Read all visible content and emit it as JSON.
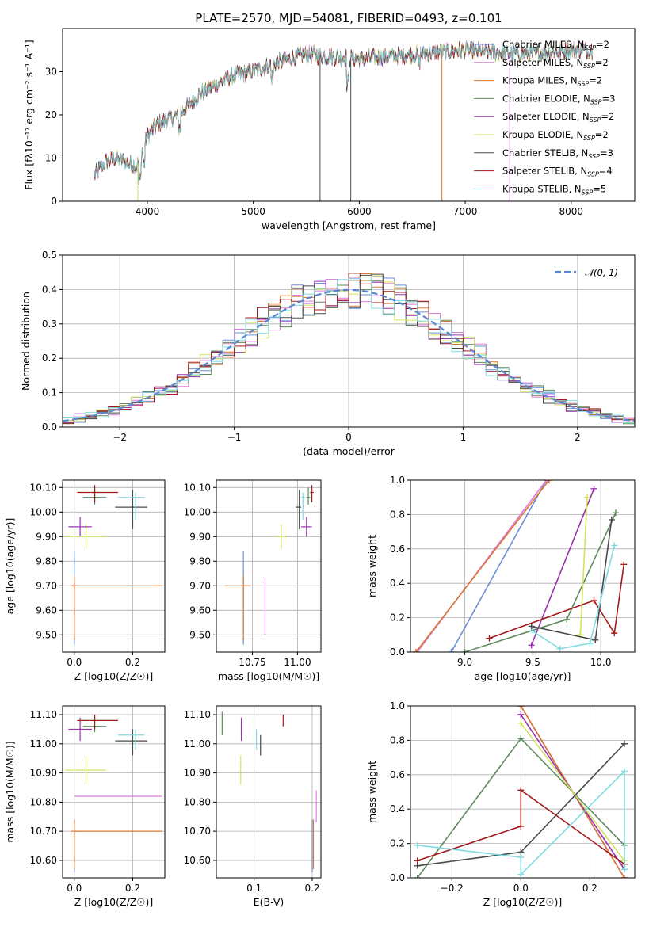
{
  "colors": {
    "Chabrier MILES": "#6a8fd8",
    "Salpeter MILES": "#e07be0",
    "Kroupa MILES": "#d9782e",
    "Chabrier ELODIE": "#5e8a5e",
    "Salpeter ELODIE": "#9a32b0",
    "Kroupa ELODIE": "#d2e35a",
    "Chabrier STELIB": "#4a4a4a",
    "Salpeter STELIB": "#a31a1a",
    "Kroupa STELIB": "#7fdbe0"
  },
  "chart_data": [
    {
      "id": "spectrum",
      "type": "line",
      "title": "PLATE=2570, MJD=54081, FIBERID=0493, z=0.101",
      "xlabel": "wavelength [Angstrom, rest frame]",
      "ylabel": "Flux [fλ10⁻¹⁷ erg cm⁻² s⁻¹ A⁻¹]",
      "xlim": [
        3200,
        8600
      ],
      "ylim": [
        0,
        40
      ],
      "xticks": [
        4000,
        5000,
        6000,
        7000,
        8000
      ],
      "yticks": [
        0,
        10,
        20,
        30
      ],
      "legend_position": "upper-right",
      "legend": [
        {
          "name": "Chabrier MILES",
          "nssp": 2
        },
        {
          "name": "Salpeter MILES",
          "nssp": 2
        },
        {
          "name": "Kroupa MILES",
          "nssp": 2
        },
        {
          "name": "Chabrier ELODIE",
          "nssp": 3
        },
        {
          "name": "Salpeter ELODIE",
          "nssp": 2
        },
        {
          "name": "Kroupa ELODIE",
          "nssp": 2
        },
        {
          "name": "Chabrier STELIB",
          "nssp": 3
        },
        {
          "name": "Salpeter STELIB",
          "nssp": 4
        },
        {
          "name": "Kroupa STELIB",
          "nssp": 5
        }
      ],
      "continuum": [
        [
          3500,
          6
        ],
        [
          3600,
          9
        ],
        [
          3700,
          10
        ],
        [
          3800,
          9
        ],
        [
          3900,
          8
        ],
        [
          4000,
          15
        ],
        [
          4100,
          18
        ],
        [
          4300,
          20
        ],
        [
          4500,
          25
        ],
        [
          4800,
          29
        ],
        [
          5000,
          30
        ],
        [
          5200,
          32
        ],
        [
          5500,
          34
        ],
        [
          6000,
          33
        ],
        [
          6500,
          34
        ],
        [
          7000,
          35
        ],
        [
          7500,
          34
        ],
        [
          8000,
          35
        ],
        [
          8200,
          35
        ]
      ]
    },
    {
      "id": "residuals",
      "type": "histogram",
      "xlabel": "(data-model)/error",
      "ylabel": "Normed distribution",
      "xlim": [
        -2.5,
        2.5
      ],
      "ylim": [
        0,
        0.5
      ],
      "xticks": [
        -2,
        -1,
        0,
        1,
        2
      ],
      "yticks": [
        0.0,
        0.1,
        0.2,
        0.3,
        0.4,
        0.5
      ],
      "legend_position": "upper-right",
      "reference_curve": "𝒩(0, 1)"
    },
    {
      "id": "age-vs-Z",
      "type": "errorbar",
      "xlabel": "Z [log10(Z/Z☉)]",
      "ylabel": "age [log10(age/yr)]",
      "xlim": [
        -0.04,
        0.31
      ],
      "ylim": [
        9.43,
        10.13
      ],
      "xticks": [
        0.0,
        0.2
      ],
      "yticks": [
        9.5,
        9.6,
        9.7,
        9.8,
        9.9,
        10.0,
        10.1
      ],
      "points": [
        {
          "series": "Chabrier MILES",
          "x": 0.0,
          "y": 9.7,
          "xerr": [
            0.0,
            0.01
          ],
          "yerr": [
            0.24,
            0.14
          ]
        },
        {
          "series": "Salpeter MILES",
          "x": 0.0,
          "y": 9.7,
          "xerr": [
            0.01,
            0.02
          ],
          "yerr": [
            0.2,
            0.02
          ]
        },
        {
          "series": "Kroupa MILES",
          "x": 0.0,
          "y": 9.7,
          "xerr": [
            0.01,
            0.3
          ],
          "yerr": [
            0.22,
            0.04
          ]
        },
        {
          "series": "Chabrier ELODIE",
          "x": 0.07,
          "y": 10.06,
          "xerr": [
            0.04,
            0.04
          ],
          "yerr": [
            0.03,
            0.04
          ]
        },
        {
          "series": "Salpeter ELODIE",
          "x": 0.02,
          "y": 9.94,
          "xerr": [
            0.04,
            0.04
          ],
          "yerr": [
            0.04,
            0.04
          ]
        },
        {
          "series": "Kroupa ELODIE",
          "x": 0.04,
          "y": 9.9,
          "xerr": [
            0.07,
            0.07
          ],
          "yerr": [
            0.05,
            0.05
          ]
        },
        {
          "series": "Chabrier STELIB",
          "x": 0.2,
          "y": 10.02,
          "xerr": [
            0.06,
            0.05
          ],
          "yerr": [
            0.09,
            0.07
          ]
        },
        {
          "series": "Salpeter STELIB",
          "x": 0.07,
          "y": 10.08,
          "xerr": [
            0.06,
            0.08
          ],
          "yerr": [
            0.04,
            0.03
          ]
        },
        {
          "series": "Kroupa STELIB",
          "x": 0.21,
          "y": 10.06,
          "xerr": [
            0.06,
            0.03
          ],
          "yerr": [
            0.09,
            0.02
          ]
        }
      ]
    },
    {
      "id": "age-vs-mass",
      "type": "errorbar",
      "xlabel": "mass [log10(M/M☉)]",
      "ylabel": "",
      "xlim": [
        10.55,
        11.13
      ],
      "ylim": [
        9.43,
        10.13
      ],
      "xticks": [
        10.75,
        11.0
      ],
      "yticks": [
        9.5,
        9.6,
        9.7,
        9.8,
        9.9,
        10.0,
        10.1
      ],
      "points": [
        {
          "series": "Chabrier MILES",
          "x": 10.7,
          "y": 9.7,
          "xerr": [
            0.0,
            0.01
          ],
          "yerr": [
            0.24,
            0.14
          ]
        },
        {
          "series": "Salpeter MILES",
          "x": 10.82,
          "y": 9.7,
          "xerr": [
            0.0,
            0.0
          ],
          "yerr": [
            0.2,
            0.03
          ]
        },
        {
          "series": "Kroupa MILES",
          "x": 10.7,
          "y": 9.7,
          "xerr": [
            0.1,
            0.04
          ],
          "yerr": [
            0.22,
            0.04
          ]
        },
        {
          "series": "Chabrier ELODIE",
          "x": 11.06,
          "y": 10.06,
          "xerr": [
            0.01,
            0.01
          ],
          "yerr": [
            0.03,
            0.04
          ]
        },
        {
          "series": "Salpeter ELODIE",
          "x": 11.05,
          "y": 9.94,
          "xerr": [
            0.03,
            0.03
          ],
          "yerr": [
            0.04,
            0.04
          ]
        },
        {
          "series": "Kroupa ELODIE",
          "x": 10.91,
          "y": 9.9,
          "xerr": [
            0.03,
            0.03
          ],
          "yerr": [
            0.05,
            0.05
          ]
        },
        {
          "series": "Chabrier STELIB",
          "x": 11.01,
          "y": 10.02,
          "xerr": [
            0.02,
            0.01
          ],
          "yerr": [
            0.09,
            0.07
          ]
        },
        {
          "series": "Salpeter STELIB",
          "x": 11.08,
          "y": 10.08,
          "xerr": [
            0.01,
            0.01
          ],
          "yerr": [
            0.04,
            0.03
          ]
        },
        {
          "series": "Kroupa STELIB",
          "x": 11.03,
          "y": 10.06,
          "xerr": [
            0.01,
            0.01
          ],
          "yerr": [
            0.09,
            0.02
          ]
        }
      ]
    },
    {
      "id": "mass-weight-vs-age",
      "type": "line",
      "xlabel": "age [log10(age/yr)]",
      "ylabel": "mass weight",
      "xlim": [
        8.6,
        10.25
      ],
      "ylim": [
        0,
        1
      ],
      "xticks": [
        9.0,
        9.5,
        10.0
      ],
      "yticks": [
        0.0,
        0.2,
        0.4,
        0.6,
        0.8,
        1.0
      ],
      "series": [
        {
          "name": "Chabrier MILES",
          "points": [
            [
              8.9,
              0.0
            ],
            [
              9.6,
              1.0
            ]
          ]
        },
        {
          "name": "Salpeter MILES",
          "points": [
            [
              8.65,
              0.0
            ],
            [
              9.6,
              1.0
            ]
          ]
        },
        {
          "name": "Kroupa MILES",
          "points": [
            [
              8.64,
              0.0
            ],
            [
              9.62,
              1.0
            ]
          ]
        },
        {
          "name": "Chabrier ELODIE",
          "points": [
            [
              9.0,
              0.0
            ],
            [
              9.75,
              0.19
            ],
            [
              10.11,
              0.81
            ]
          ]
        },
        {
          "name": "Salpeter ELODIE",
          "points": [
            [
              9.49,
              0.04
            ],
            [
              9.95,
              0.95
            ]
          ]
        },
        {
          "name": "Kroupa ELODIE",
          "points": [
            [
              9.85,
              0.1
            ],
            [
              9.9,
              0.9
            ]
          ]
        },
        {
          "name": "Chabrier STELIB",
          "points": [
            [
              9.49,
              0.15
            ],
            [
              9.96,
              0.07
            ],
            [
              10.08,
              0.77
            ]
          ]
        },
        {
          "name": "Salpeter STELIB",
          "points": [
            [
              9.18,
              0.08
            ],
            [
              9.95,
              0.3
            ],
            [
              10.1,
              0.11
            ],
            [
              10.17,
              0.51
            ]
          ]
        },
        {
          "name": "Kroupa STELIB",
          "points": [
            [
              9.5,
              0.12
            ],
            [
              9.7,
              0.02
            ],
            [
              9.92,
              0.05
            ],
            [
              10.1,
              0.62
            ]
          ]
        }
      ]
    },
    {
      "id": "mass-vs-Z",
      "type": "errorbar",
      "xlabel": "Z [log10(Z/Z☉)]",
      "ylabel": "mass [log10(M/M☉)]",
      "xlim": [
        -0.04,
        0.31
      ],
      "ylim": [
        10.54,
        11.13
      ],
      "xticks": [
        0.0,
        0.2
      ],
      "yticks": [
        10.6,
        10.7,
        10.8,
        10.9,
        11.0,
        11.1
      ],
      "points": [
        {
          "series": "Chabrier MILES",
          "x": 0.0,
          "y": 10.7,
          "xerr": [
            0.0,
            0.01
          ],
          "yerr": [
            0.14,
            0.04
          ]
        },
        {
          "series": "Salpeter MILES",
          "x": 0.0,
          "y": 10.82,
          "xerr": [
            0.0,
            0.3
          ],
          "yerr": [
            0.0,
            0.0
          ]
        },
        {
          "series": "Kroupa MILES",
          "x": 0.0,
          "y": 10.7,
          "xerr": [
            0.01,
            0.3
          ],
          "yerr": [
            0.13,
            0.04
          ]
        },
        {
          "series": "Chabrier ELODIE",
          "x": 0.07,
          "y": 11.06,
          "xerr": [
            0.04,
            0.04
          ],
          "yerr": [
            0.02,
            0.04
          ]
        },
        {
          "series": "Salpeter ELODIE",
          "x": 0.02,
          "y": 11.05,
          "xerr": [
            0.04,
            0.04
          ],
          "yerr": [
            0.04,
            0.04
          ]
        },
        {
          "series": "Kroupa ELODIE",
          "x": 0.04,
          "y": 10.91,
          "xerr": [
            0.07,
            0.07
          ],
          "yerr": [
            0.05,
            0.05
          ]
        },
        {
          "series": "Chabrier STELIB",
          "x": 0.2,
          "y": 11.01,
          "xerr": [
            0.06,
            0.05
          ],
          "yerr": [
            0.05,
            0.04
          ]
        },
        {
          "series": "Salpeter STELIB",
          "x": 0.07,
          "y": 11.08,
          "xerr": [
            0.06,
            0.08
          ],
          "yerr": [
            0.03,
            0.02
          ]
        },
        {
          "series": "Kroupa STELIB",
          "x": 0.21,
          "y": 11.03,
          "xerr": [
            0.06,
            0.03
          ],
          "yerr": [
            0.05,
            0.02
          ]
        }
      ]
    },
    {
      "id": "mass-vs-EBV",
      "type": "errorbar",
      "xlabel": "E(B-V)",
      "ylabel": "",
      "xlim": [
        0.035,
        0.215
      ],
      "ylim": [
        10.54,
        11.13
      ],
      "xticks": [
        0.0,
        0.1,
        0.2
      ],
      "yticks": [
        10.6,
        10.7,
        10.8,
        10.9,
        11.0,
        11.1
      ],
      "points": [
        {
          "series": "Chabrier MILES",
          "x": 0.2,
          "y": 10.7,
          "xerr": [
            0.0,
            0.0
          ],
          "yerr": [
            0.14,
            0.04
          ]
        },
        {
          "series": "Salpeter MILES",
          "x": 0.207,
          "y": 10.79,
          "xerr": [
            0.0,
            0.0
          ],
          "yerr": [
            0.06,
            0.05
          ]
        },
        {
          "series": "Kroupa MILES",
          "x": 0.202,
          "y": 10.7,
          "xerr": [
            0.0,
            0.0
          ],
          "yerr": [
            0.13,
            0.04
          ]
        },
        {
          "series": "Chabrier ELODIE",
          "x": 0.045,
          "y": 11.07,
          "xerr": [
            0.0,
            0.0
          ],
          "yerr": [
            0.04,
            0.04
          ]
        },
        {
          "series": "Salpeter ELODIE",
          "x": 0.078,
          "y": 11.05,
          "xerr": [
            0.0,
            0.0
          ],
          "yerr": [
            0.04,
            0.04
          ]
        },
        {
          "series": "Kroupa ELODIE",
          "x": 0.077,
          "y": 10.91,
          "xerr": [
            0.0,
            0.0
          ],
          "yerr": [
            0.05,
            0.05
          ]
        },
        {
          "series": "Chabrier STELIB",
          "x": 0.111,
          "y": 11.0,
          "xerr": [
            0.0,
            0.0
          ],
          "yerr": [
            0.04,
            0.03
          ]
        },
        {
          "series": "Salpeter STELIB",
          "x": 0.15,
          "y": 11.08,
          "xerr": [
            0.0,
            0.0
          ],
          "yerr": [
            0.02,
            0.02
          ]
        },
        {
          "series": "Kroupa STELIB",
          "x": 0.104,
          "y": 11.03,
          "xerr": [
            0.0,
            0.0
          ],
          "yerr": [
            0.05,
            0.02
          ]
        }
      ]
    },
    {
      "id": "mass-weight-vs-Z",
      "type": "line",
      "xlabel": "Z [log10(Z/Z☉)]",
      "ylabel": "mass weight",
      "xlim": [
        -0.32,
        0.33
      ],
      "ylim": [
        0,
        1
      ],
      "xticks": [
        -0.2,
        0.0,
        0.2
      ],
      "yticks": [
        0.0,
        0.2,
        0.4,
        0.6,
        0.8,
        1.0
      ],
      "series": [
        {
          "name": "Chabrier MILES",
          "points": [
            [
              0.0,
              1.0
            ],
            [
              0.3,
              0.0
            ]
          ]
        },
        {
          "name": "Salpeter MILES",
          "points": [
            [
              0.0,
              1.0
            ],
            [
              0.3,
              0.0
            ]
          ]
        },
        {
          "name": "Kroupa MILES",
          "points": [
            [
              0.0,
              1.0
            ],
            [
              0.3,
              0.0
            ]
          ]
        },
        {
          "name": "Chabrier ELODIE",
          "points": [
            [
              -0.3,
              0.0
            ],
            [
              0.0,
              0.81
            ],
            [
              0.3,
              0.19
            ]
          ]
        },
        {
          "name": "Salpeter ELODIE",
          "points": [
            [
              0.0,
              0.95
            ],
            [
              0.3,
              0.05
            ]
          ]
        },
        {
          "name": "Kroupa ELODIE",
          "points": [
            [
              0.0,
              0.9
            ],
            [
              0.3,
              0.1
            ]
          ]
        },
        {
          "name": "Chabrier STELIB",
          "points": [
            [
              -0.3,
              0.07
            ],
            [
              0.0,
              0.15
            ],
            [
              0.3,
              0.78
            ]
          ]
        },
        {
          "name": "Salpeter STELIB",
          "points": [
            [
              -0.3,
              0.1
            ],
            [
              0.0,
              0.3
            ],
            [
              0.0,
              0.51
            ],
            [
              0.3,
              0.08
            ]
          ]
        },
        {
          "name": "Kroupa STELIB",
          "points": [
            [
              -0.3,
              0.19
            ],
            [
              0.0,
              0.12
            ],
            [
              0.0,
              0.02
            ],
            [
              0.3,
              0.62
            ],
            [
              0.3,
              0.05
            ]
          ]
        }
      ]
    }
  ]
}
